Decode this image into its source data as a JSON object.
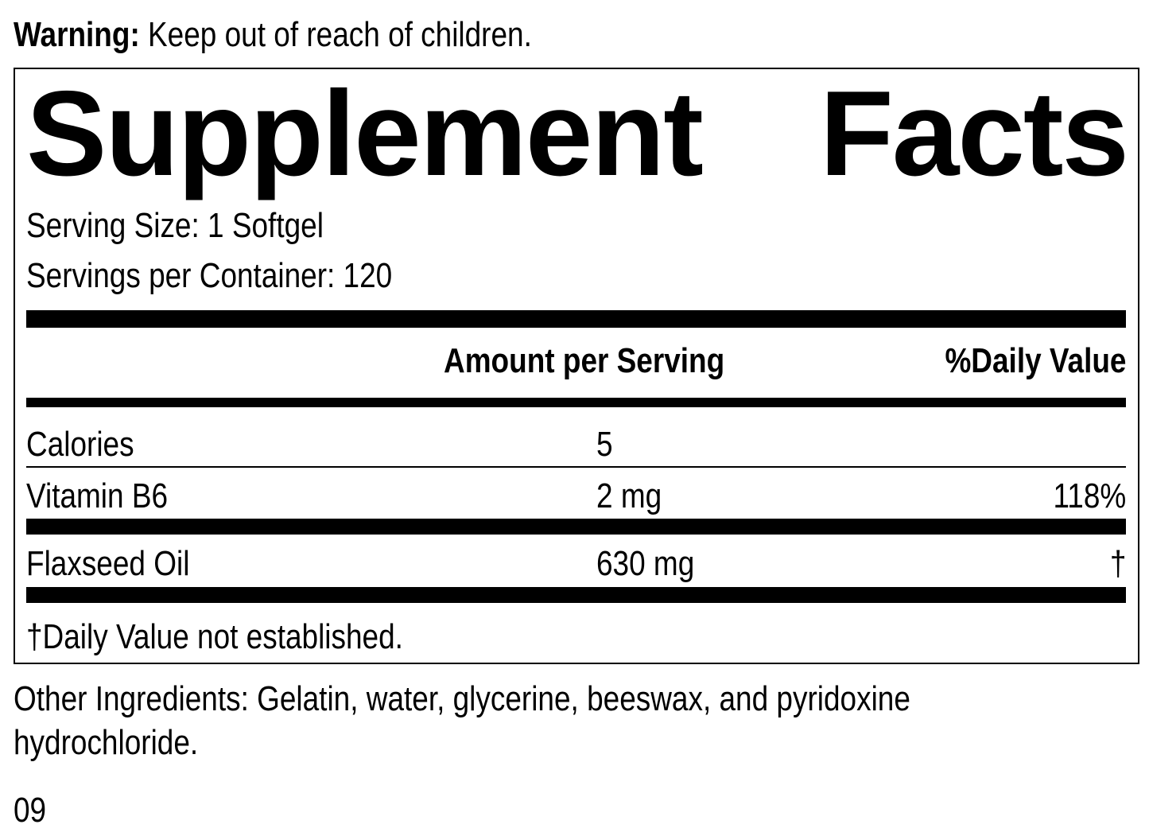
{
  "warning": {
    "label": "Warning:",
    "text": " Keep out of reach of children."
  },
  "panel": {
    "title_word1": "Supplement",
    "title_word2": "Facts",
    "serving_size": "Serving Size: 1 Softgel",
    "servings_per_container": "Servings per Container: 120",
    "headers": {
      "amount": "Amount per Serving",
      "dv": "%Daily Value"
    },
    "rows": [
      {
        "name": "Calories",
        "amount": "5",
        "dv": ""
      },
      {
        "name": "Vitamin B6",
        "amount": "2 mg",
        "dv": "118%"
      },
      {
        "name": "Flaxseed Oil",
        "amount": "630 mg",
        "dv": "†"
      }
    ],
    "footnote": "†Daily Value not established."
  },
  "other_ingredients": {
    "line1": "Other Ingredients: Gelatin, water, glycerine, beeswax, and pyridoxine",
    "line2": "hydrochloride."
  },
  "code": "09"
}
